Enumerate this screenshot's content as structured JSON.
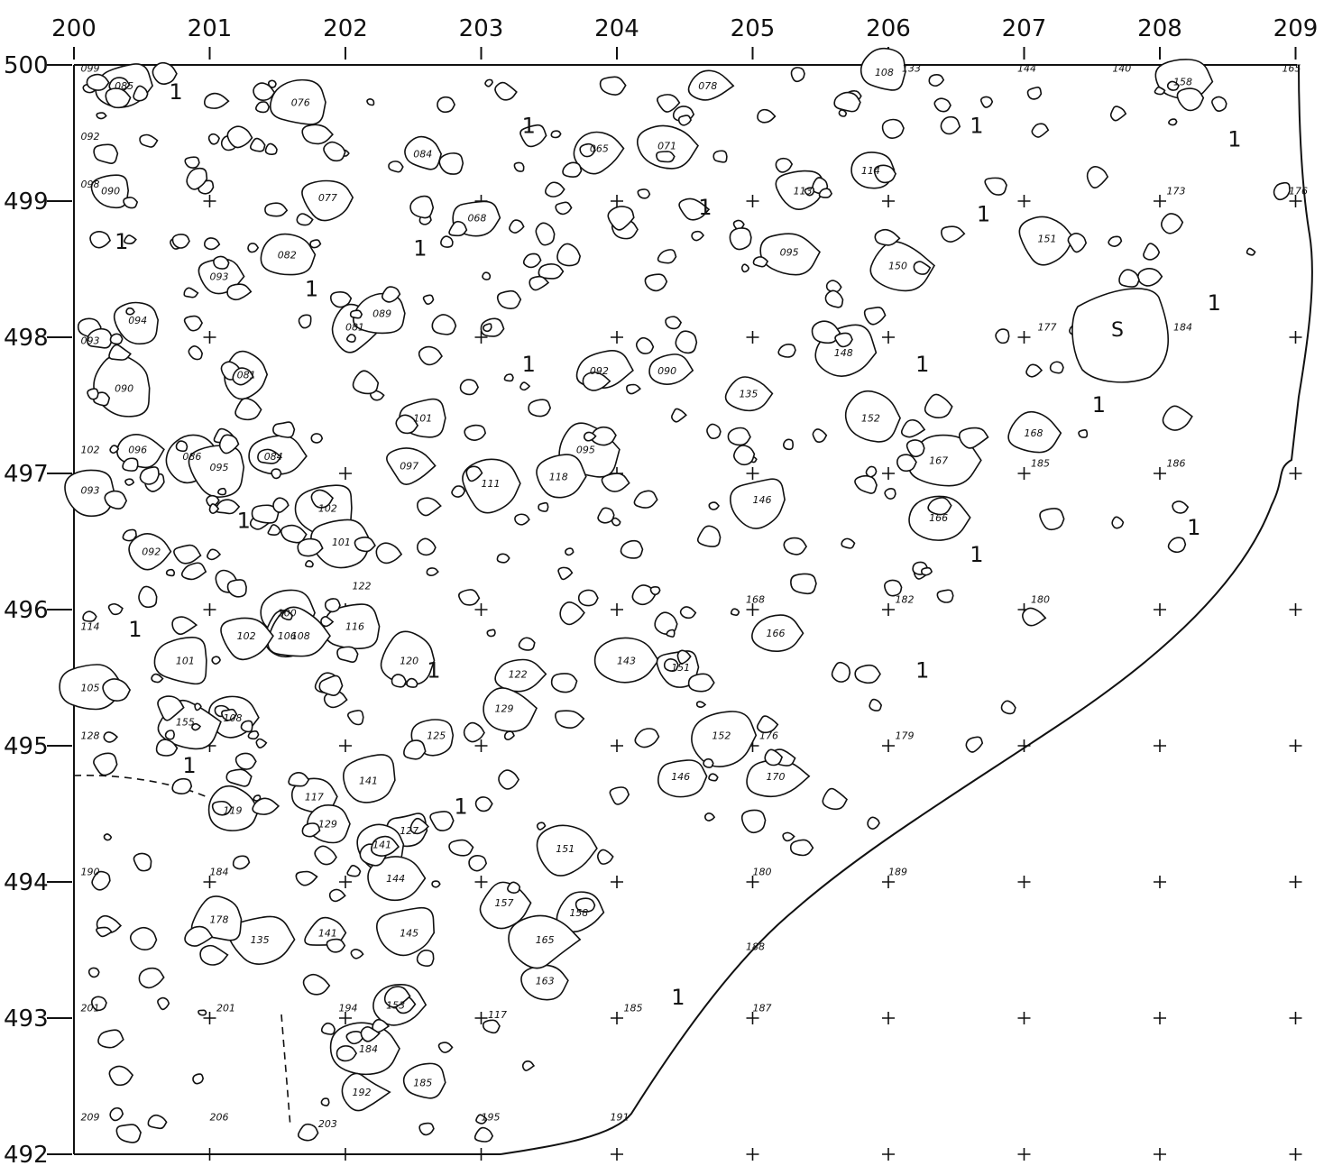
{
  "plan": {
    "x_ticks": [
      "200",
      "201",
      "202",
      "203",
      "204",
      "205",
      "206",
      "207",
      "208",
      "209"
    ],
    "y_ticks": [
      "500",
      "499",
      "498",
      "497",
      "496",
      "495",
      "494",
      "493",
      "492"
    ],
    "special_stone_label": "S",
    "layer_label": "1",
    "stone_labels": [
      {
        "t": "085",
        "x": 200.3,
        "y": 499.82
      },
      {
        "t": "076",
        "x": 201.6,
        "y": 499.7
      },
      {
        "t": "078",
        "x": 204.6,
        "y": 499.82
      },
      {
        "t": "108",
        "x": 205.9,
        "y": 499.92
      },
      {
        "t": "158",
        "x": 208.1,
        "y": 499.85
      },
      {
        "t": "065",
        "x": 203.8,
        "y": 499.36
      },
      {
        "t": "071",
        "x": 204.3,
        "y": 499.38
      },
      {
        "t": "084",
        "x": 202.5,
        "y": 499.32
      },
      {
        "t": "090",
        "x": 200.2,
        "y": 499.05
      },
      {
        "t": "077",
        "x": 201.8,
        "y": 499.0
      },
      {
        "t": "068",
        "x": 202.9,
        "y": 498.85
      },
      {
        "t": "113",
        "x": 205.3,
        "y": 499.05
      },
      {
        "t": "114",
        "x": 205.8,
        "y": 499.2
      },
      {
        "t": "082",
        "x": 201.5,
        "y": 498.58
      },
      {
        "t": "093",
        "x": 201.0,
        "y": 498.42
      },
      {
        "t": "095",
        "x": 205.2,
        "y": 498.6
      },
      {
        "t": "150",
        "x": 206.0,
        "y": 498.5
      },
      {
        "t": "151",
        "x": 207.1,
        "y": 498.7
      },
      {
        "t": "094",
        "x": 200.4,
        "y": 498.1
      },
      {
        "t": "081",
        "x": 202.0,
        "y": 498.05
      },
      {
        "t": "089",
        "x": 202.2,
        "y": 498.15
      },
      {
        "t": "092",
        "x": 203.8,
        "y": 497.73
      },
      {
        "t": "090",
        "x": 204.3,
        "y": 497.73
      },
      {
        "t": "135",
        "x": 204.9,
        "y": 497.56
      },
      {
        "t": "148",
        "x": 205.6,
        "y": 497.86
      },
      {
        "t": "090",
        "x": 200.3,
        "y": 497.6
      },
      {
        "t": "081",
        "x": 201.2,
        "y": 497.7
      },
      {
        "t": "101",
        "x": 202.5,
        "y": 497.38
      },
      {
        "t": "152",
        "x": 205.8,
        "y": 497.38
      },
      {
        "t": "168",
        "x": 207.0,
        "y": 497.27
      },
      {
        "t": "096",
        "x": 200.4,
        "y": 497.15
      },
      {
        "t": "086",
        "x": 200.8,
        "y": 497.1
      },
      {
        "t": "095",
        "x": 201.0,
        "y": 497.02
      },
      {
        "t": "084",
        "x": 201.4,
        "y": 497.1
      },
      {
        "t": "097",
        "x": 202.4,
        "y": 497.03
      },
      {
        "t": "095",
        "x": 203.7,
        "y": 497.15
      },
      {
        "t": "167",
        "x": 206.3,
        "y": 497.07
      },
      {
        "t": "111",
        "x": 203.0,
        "y": 496.9
      },
      {
        "t": "118",
        "x": 203.5,
        "y": 496.95
      },
      {
        "t": "146",
        "x": 205.0,
        "y": 496.78
      },
      {
        "t": "166",
        "x": 206.3,
        "y": 496.65
      },
      {
        "t": "093",
        "x": 200.05,
        "y": 496.85
      },
      {
        "t": "092",
        "x": 200.5,
        "y": 496.4
      },
      {
        "t": "102",
        "x": 201.8,
        "y": 496.72
      },
      {
        "t": "101",
        "x": 201.9,
        "y": 496.47
      },
      {
        "t": "116",
        "x": 202.0,
        "y": 495.85
      },
      {
        "t": "100",
        "x": 201.5,
        "y": 495.95
      },
      {
        "t": "106",
        "x": 201.5,
        "y": 495.78
      },
      {
        "t": "108",
        "x": 201.6,
        "y": 495.78
      },
      {
        "t": "102",
        "x": 201.2,
        "y": 495.78
      },
      {
        "t": "101",
        "x": 200.75,
        "y": 495.6
      },
      {
        "t": "105",
        "x": 200.05,
        "y": 495.4
      },
      {
        "t": "120",
        "x": 202.4,
        "y": 495.6
      },
      {
        "t": "122",
        "x": 203.2,
        "y": 495.5
      },
      {
        "t": "143",
        "x": 204.0,
        "y": 495.6
      },
      {
        "t": "151",
        "x": 204.4,
        "y": 495.55
      },
      {
        "t": "166",
        "x": 205.1,
        "y": 495.8
      },
      {
        "t": "125",
        "x": 202.6,
        "y": 495.05
      },
      {
        "t": "129",
        "x": 203.1,
        "y": 495.25
      },
      {
        "t": "152",
        "x": 204.7,
        "y": 495.05
      },
      {
        "t": "108",
        "x": 201.1,
        "y": 495.18
      },
      {
        "t": "170",
        "x": 205.1,
        "y": 494.75
      },
      {
        "t": "146",
        "x": 204.4,
        "y": 494.75
      },
      {
        "t": "119",
        "x": 201.1,
        "y": 494.5
      },
      {
        "t": "141",
        "x": 202.1,
        "y": 494.72
      },
      {
        "t": "117",
        "x": 201.7,
        "y": 494.6
      },
      {
        "t": "129",
        "x": 201.8,
        "y": 494.4
      },
      {
        "t": "127",
        "x": 202.4,
        "y": 494.35
      },
      {
        "t": "141",
        "x": 202.2,
        "y": 494.25
      },
      {
        "t": "144",
        "x": 202.3,
        "y": 494.0
      },
      {
        "t": "151",
        "x": 203.55,
        "y": 494.22
      },
      {
        "t": "158",
        "x": 203.65,
        "y": 493.75
      },
      {
        "t": "135",
        "x": 201.3,
        "y": 493.55
      },
      {
        "t": "141",
        "x": 201.8,
        "y": 493.6
      },
      {
        "t": "145",
        "x": 202.4,
        "y": 493.6
      },
      {
        "t": "153",
        "x": 202.3,
        "y": 493.07
      },
      {
        "t": "163",
        "x": 203.4,
        "y": 493.25
      },
      {
        "t": "165",
        "x": 203.4,
        "y": 493.55
      },
      {
        "t": "178",
        "x": 201.0,
        "y": 493.7
      },
      {
        "t": "184",
        "x": 202.1,
        "y": 492.75
      },
      {
        "t": "192",
        "x": 202.05,
        "y": 492.43
      },
      {
        "t": "185",
        "x": 202.5,
        "y": 492.5
      },
      {
        "t": "157",
        "x": 203.1,
        "y": 493.82
      },
      {
        "t": "155",
        "x": 200.75,
        "y": 495.15
      }
    ],
    "grid_labels": [
      {
        "t": "173",
        "x": 208.05,
        "y": 499.05
      },
      {
        "t": "176",
        "x": 208.95,
        "y": 499.05
      },
      {
        "t": "177",
        "x": 207.1,
        "y": 498.05
      },
      {
        "t": "184",
        "x": 208.1,
        "y": 498.05
      },
      {
        "t": "185",
        "x": 207.05,
        "y": 497.05
      },
      {
        "t": "186",
        "x": 208.05,
        "y": 497.05
      },
      {
        "t": "182",
        "x": 206.05,
        "y": 496.05
      },
      {
        "t": "180",
        "x": 207.05,
        "y": 496.05
      },
      {
        "t": "179",
        "x": 206.05,
        "y": 495.05
      },
      {
        "t": "176",
        "x": 205.05,
        "y": 495.05
      },
      {
        "t": "180",
        "x": 205.0,
        "y": 494.05
      },
      {
        "t": "189",
        "x": 206.0,
        "y": 494.05
      },
      {
        "t": "190",
        "x": 200.05,
        "y": 494.05
      },
      {
        "t": "184",
        "x": 201.0,
        "y": 494.05
      },
      {
        "t": "201",
        "x": 200.05,
        "y": 493.05
      },
      {
        "t": "201",
        "x": 201.05,
        "y": 493.05
      },
      {
        "t": "194",
        "x": 201.95,
        "y": 493.05
      },
      {
        "t": "117",
        "x": 203.05,
        "y": 493.0
      },
      {
        "t": "185",
        "x": 204.05,
        "y": 493.05
      },
      {
        "t": "187",
        "x": 205.0,
        "y": 493.05
      },
      {
        "t": "209",
        "x": 200.05,
        "y": 492.25
      },
      {
        "t": "206",
        "x": 201.0,
        "y": 492.25
      },
      {
        "t": "203",
        "x": 201.8,
        "y": 492.2
      },
      {
        "t": "195",
        "x": 203.0,
        "y": 492.25
      },
      {
        "t": "191",
        "x": 203.95,
        "y": 492.25
      },
      {
        "t": "188",
        "x": 204.95,
        "y": 493.5
      },
      {
        "t": "165",
        "x": 208.9,
        "y": 499.95
      },
      {
        "t": "133",
        "x": 206.1,
        "y": 499.95
      },
      {
        "t": "144",
        "x": 206.95,
        "y": 499.95
      },
      {
        "t": "140",
        "x": 207.65,
        "y": 499.95
      },
      {
        "t": "128",
        "x": 200.05,
        "y": 495.05
      },
      {
        "t": "114",
        "x": 200.05,
        "y": 495.85
      },
      {
        "t": "102",
        "x": 200.05,
        "y": 497.15
      },
      {
        "t": "093",
        "x": 200.05,
        "y": 497.95
      },
      {
        "t": "092",
        "x": 200.05,
        "y": 499.45
      },
      {
        "t": "099",
        "x": 200.05,
        "y": 499.95
      },
      {
        "t": "098",
        "x": 200.05,
        "y": 499.1
      },
      {
        "t": "122",
        "x": 202.05,
        "y": 496.15
      },
      {
        "t": "168",
        "x": 204.95,
        "y": 496.05
      }
    ],
    "layer_marks": [
      {
        "x": 200.7,
        "y": 499.75
      },
      {
        "x": 203.3,
        "y": 499.5
      },
      {
        "x": 204.6,
        "y": 498.9
      },
      {
        "x": 206.6,
        "y": 499.5
      },
      {
        "x": 208.5,
        "y": 499.4
      },
      {
        "x": 200.3,
        "y": 498.65
      },
      {
        "x": 202.5,
        "y": 498.6
      },
      {
        "x": 201.7,
        "y": 498.3
      },
      {
        "x": 203.3,
        "y": 497.75
      },
      {
        "x": 206.2,
        "y": 497.75
      },
      {
        "x": 206.65,
        "y": 498.85
      },
      {
        "x": 208.35,
        "y": 498.2
      },
      {
        "x": 207.5,
        "y": 497.45
      },
      {
        "x": 208.2,
        "y": 496.55
      },
      {
        "x": 206.6,
        "y": 496.35
      },
      {
        "x": 206.2,
        "y": 495.5
      },
      {
        "x": 202.6,
        "y": 495.5
      },
      {
        "x": 200.4,
        "y": 495.8
      },
      {
        "x": 201.2,
        "y": 496.6
      },
      {
        "x": 200.8,
        "y": 494.8
      },
      {
        "x": 202.8,
        "y": 494.5
      },
      {
        "x": 204.4,
        "y": 493.1
      }
    ]
  }
}
